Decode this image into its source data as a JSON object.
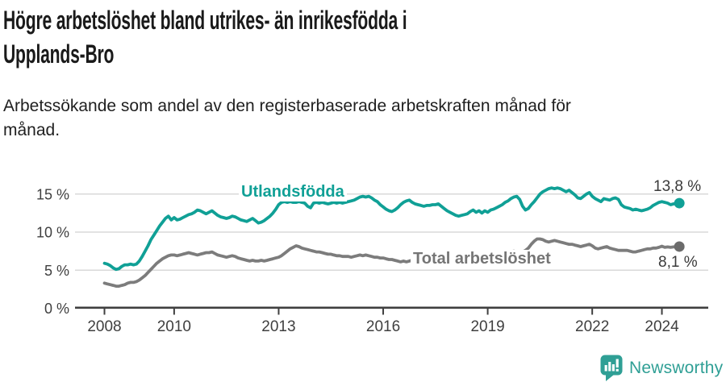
{
  "header": {
    "title_lines": [
      "Högre arbetslöshet bland utrikes- än inrikesfödda i",
      "Upplands-Bro"
    ],
    "subtitle_lines": [
      "Arbetssökande som andel av den registerbaserade arbetskraften månad för",
      "månad."
    ]
  },
  "chart_data": {
    "type": "line",
    "title": "Högre arbetslöshet bland utrikes- än inrikesfödda i Upplands-Bro",
    "subtitle": "Arbetssökande som andel av den registerbaserade arbetskraften månad för månad.",
    "x_start_year": 2008,
    "x_step_months": 1,
    "x_end_approx": 2024.5,
    "x_ticks": [
      2008,
      2010,
      2013,
      2016,
      2019,
      2022,
      2024
    ],
    "x_tick_labels": [
      "2008",
      "2010",
      "2013",
      "2016",
      "2019",
      "2022",
      "2024"
    ],
    "y_ticks": [
      {
        "value": 0,
        "label": "0 %"
      },
      {
        "value": 5,
        "label": "5 %"
      },
      {
        "value": 10,
        "label": "10 %"
      },
      {
        "value": 15,
        "label": "15 %"
      }
    ],
    "ylim": [
      0,
      16.5
    ],
    "grid": "horizontal",
    "legend_position": "inline-labels",
    "series": [
      {
        "name": "Utlandsfödda",
        "color": "#10a096",
        "end_value": 13.8,
        "end_label": "13,8 %",
        "values": [
          5.9,
          5.8,
          5.6,
          5.3,
          5.1,
          5.2,
          5.5,
          5.7,
          5.7,
          5.8,
          5.7,
          5.8,
          6.2,
          6.8,
          7.5,
          8.2,
          9.0,
          9.6,
          10.2,
          10.8,
          11.3,
          11.8,
          12.1,
          11.6,
          11.9,
          11.6,
          11.7,
          11.9,
          12.1,
          12.3,
          12.4,
          12.6,
          12.9,
          12.8,
          12.6,
          12.4,
          12.6,
          12.8,
          12.5,
          12.2,
          12.0,
          11.9,
          11.8,
          11.9,
          12.1,
          12.0,
          11.8,
          11.6,
          11.5,
          11.4,
          11.6,
          11.8,
          11.5,
          11.2,
          11.3,
          11.5,
          11.8,
          12.1,
          12.5,
          13.0,
          13.6,
          13.9,
          14.0,
          13.9,
          14.0,
          13.9,
          13.9,
          14.0,
          13.9,
          13.8,
          13.4,
          13.2,
          13.8,
          13.9,
          13.8,
          13.9,
          13.8,
          13.7,
          13.8,
          13.9,
          13.8,
          13.9,
          13.8,
          13.9,
          14.0,
          14.1,
          14.2,
          14.4,
          14.6,
          14.7,
          14.6,
          14.7,
          14.5,
          14.2,
          14.0,
          13.6,
          13.3,
          13.0,
          12.8,
          12.7,
          12.9,
          13.2,
          13.6,
          13.9,
          14.1,
          14.2,
          13.9,
          13.7,
          13.6,
          13.5,
          13.4,
          13.5,
          13.5,
          13.6,
          13.6,
          13.7,
          13.4,
          13.1,
          12.8,
          12.6,
          12.4,
          12.2,
          12.1,
          12.2,
          12.3,
          12.4,
          12.7,
          12.9,
          12.6,
          12.8,
          12.5,
          12.8,
          12.6,
          12.9,
          13.0,
          13.2,
          13.4,
          13.6,
          13.9,
          14.1,
          14.4,
          14.6,
          14.7,
          14.3,
          13.4,
          12.9,
          13.1,
          13.6,
          14.0,
          14.5,
          15.0,
          15.3,
          15.5,
          15.7,
          15.8,
          15.7,
          15.8,
          15.7,
          15.5,
          15.3,
          15.5,
          15.2,
          14.9,
          14.5,
          14.4,
          14.7,
          15.0,
          15.2,
          14.7,
          14.4,
          14.2,
          14.0,
          14.4,
          14.3,
          14.2,
          14.4,
          14.5,
          14.3,
          13.6,
          13.3,
          13.2,
          13.1,
          12.9,
          13.0,
          12.9,
          12.8,
          12.9,
          13.0,
          13.2,
          13.5,
          13.7,
          13.9,
          14.0,
          13.9,
          13.8,
          13.6,
          13.7,
          13.75,
          13.8
        ]
      },
      {
        "name": "Total arbetslöshet",
        "color": "#7c7c7c",
        "end_value": 8.1,
        "end_label": "8,1 %",
        "values": [
          3.3,
          3.2,
          3.1,
          3.0,
          2.9,
          2.9,
          3.0,
          3.1,
          3.3,
          3.4,
          3.4,
          3.5,
          3.7,
          4.0,
          4.3,
          4.7,
          5.1,
          5.5,
          5.9,
          6.2,
          6.5,
          6.7,
          6.9,
          7.0,
          7.0,
          6.9,
          7.0,
          7.1,
          7.2,
          7.3,
          7.2,
          7.1,
          7.0,
          7.1,
          7.2,
          7.3,
          7.3,
          7.4,
          7.2,
          7.0,
          6.9,
          6.8,
          6.7,
          6.8,
          6.9,
          6.8,
          6.6,
          6.5,
          6.4,
          6.3,
          6.2,
          6.3,
          6.2,
          6.2,
          6.3,
          6.2,
          6.3,
          6.4,
          6.5,
          6.6,
          6.7,
          6.9,
          7.2,
          7.5,
          7.8,
          8.0,
          8.2,
          8.1,
          7.9,
          7.8,
          7.7,
          7.6,
          7.5,
          7.4,
          7.4,
          7.3,
          7.2,
          7.1,
          7.1,
          7.0,
          6.9,
          6.9,
          6.8,
          6.8,
          6.8,
          6.7,
          6.8,
          6.9,
          7.0,
          6.9,
          7.0,
          6.9,
          6.8,
          6.7,
          6.7,
          6.6,
          6.6,
          6.5,
          6.4,
          6.4,
          6.3,
          6.2,
          6.1,
          6.2,
          6.1,
          6.2,
          6.3,
          6.5,
          6.6,
          6.6,
          6.5,
          6.6,
          6.5,
          6.6,
          6.5,
          6.6,
          6.5,
          6.6,
          6.6,
          6.5,
          6.6,
          6.5,
          6.5,
          6.4,
          6.5,
          6.4,
          6.5,
          6.5,
          6.6,
          6.6,
          6.7,
          6.7,
          6.8,
          6.8,
          6.9,
          7.0,
          7.1,
          7.1,
          7.2,
          7.3,
          7.4,
          7.5,
          7.4,
          7.3,
          7.4,
          7.6,
          7.9,
          8.4,
          8.8,
          9.1,
          9.1,
          9.0,
          8.8,
          8.7,
          8.8,
          8.9,
          8.8,
          8.7,
          8.6,
          8.5,
          8.4,
          8.4,
          8.3,
          8.2,
          8.1,
          8.2,
          8.3,
          8.4,
          8.2,
          7.9,
          7.8,
          7.9,
          8.0,
          8.1,
          7.9,
          7.8,
          7.7,
          7.6,
          7.6,
          7.6,
          7.6,
          7.5,
          7.4,
          7.4,
          7.5,
          7.6,
          7.7,
          7.8,
          7.8,
          7.9,
          7.9,
          8.0,
          8.15,
          8.0,
          8.05,
          8.0,
          8.05,
          8.1,
          8.1
        ]
      }
    ]
  },
  "footer": {
    "brand": "Newsworthy",
    "logo_icon": "newsworthy-speech-bubble-bar-chart-icon",
    "brand_color": "#2f9f95"
  }
}
